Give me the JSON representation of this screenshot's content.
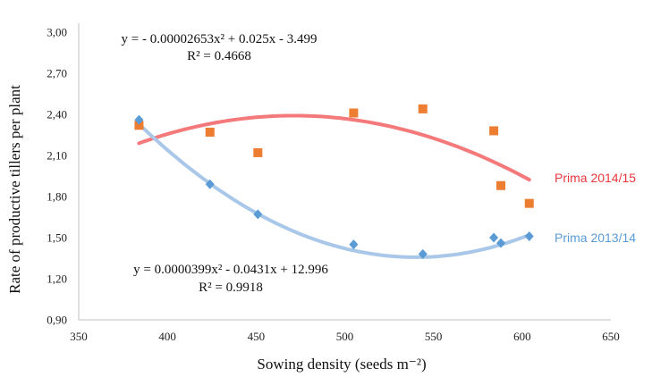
{
  "chart_data": {
    "type": "scatter",
    "xlabel": "Sowing density (seeds m⁻²)",
    "ylabel": "Rate of productive tillers per plant",
    "xlim": [
      350,
      650
    ],
    "ylim": [
      0.9,
      3.0
    ],
    "x_ticks": [
      "350",
      "400",
      "450",
      "500",
      "550",
      "600",
      "650"
    ],
    "y_ticks": [
      "0,90",
      "1,20",
      "1,50",
      "1,80",
      "2,10",
      "2,40",
      "2,70",
      "3,00"
    ],
    "grid": false,
    "series": [
      {
        "name": "Prima 2014/15",
        "marker": "square",
        "marker_color": "#ED7D31",
        "trend_color": "#F4797A",
        "trend": {
          "a": -2.653e-05,
          "b": 0.025,
          "c": -3.499
        },
        "trend_equation": "y = - 0.00002653x² + 0.025x - 3.499",
        "r2_label": "R² = 0.4668",
        "points": [
          {
            "x": 384,
            "y": 2.32
          },
          {
            "x": 424,
            "y": 2.27
          },
          {
            "x": 451,
            "y": 2.12
          },
          {
            "x": 505,
            "y": 2.41
          },
          {
            "x": 544,
            "y": 2.44
          },
          {
            "x": 584,
            "y": 2.28
          },
          {
            "x": 588,
            "y": 1.88
          },
          {
            "x": 604,
            "y": 1.75
          }
        ]
      },
      {
        "name": "Prima 2013/14",
        "marker": "diamond",
        "marker_color": "#5B9BD5",
        "trend_color": "#A9C7E8",
        "trend": {
          "a": 3.99e-05,
          "b": -0.0431,
          "c": 12.996
        },
        "trend_equation": "y = 0.0000399x² - 0.0431x + 12.996",
        "r2_label": "R² = 0.9918",
        "points": [
          {
            "x": 384,
            "y": 2.36
          },
          {
            "x": 424,
            "y": 1.89
          },
          {
            "x": 451,
            "y": 1.67
          },
          {
            "x": 505,
            "y": 1.45
          },
          {
            "x": 544,
            "y": 1.38
          },
          {
            "x": 584,
            "y": 1.5
          },
          {
            "x": 588,
            "y": 1.46
          },
          {
            "x": 604,
            "y": 1.51
          }
        ]
      }
    ]
  }
}
